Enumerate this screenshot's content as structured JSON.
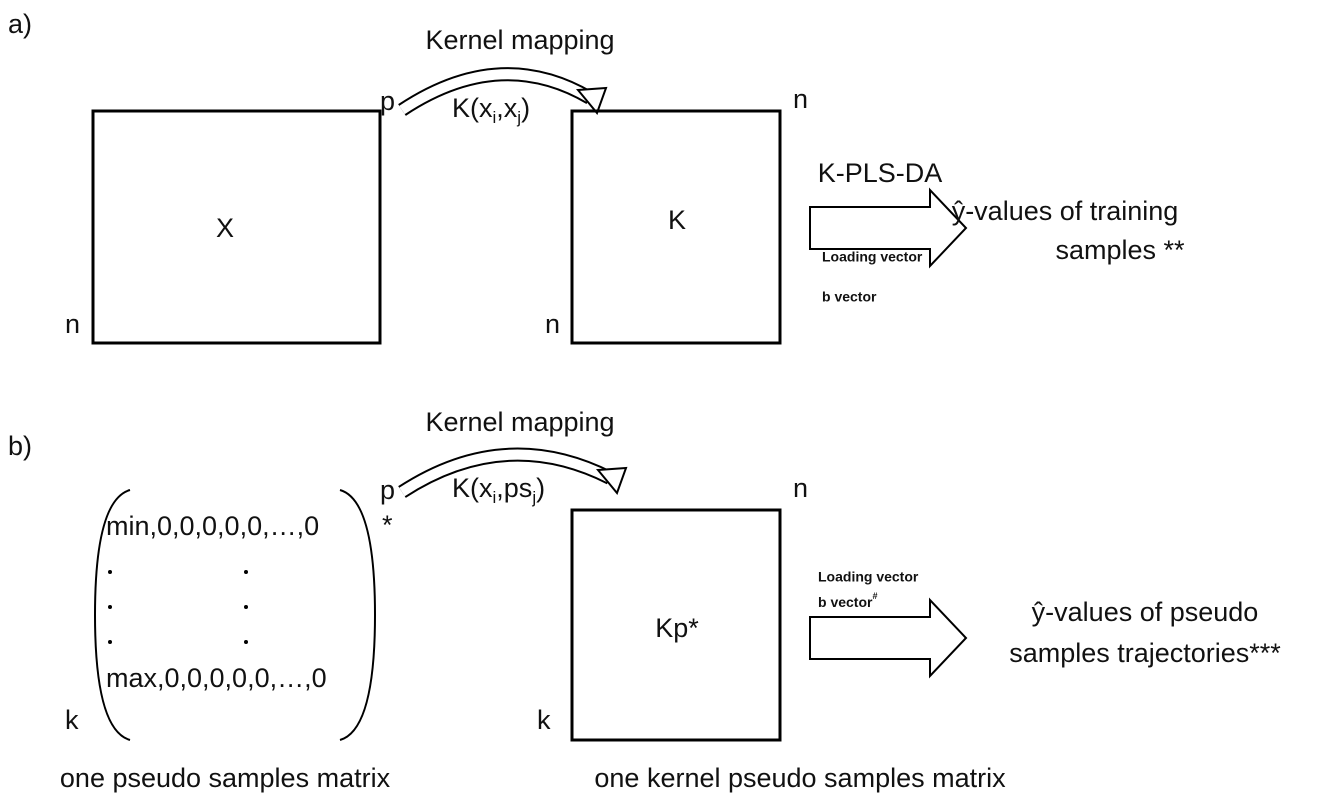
{
  "panel_a": {
    "label": "a)",
    "mapping_title": "Kernel mapping",
    "formula": [
      "K(x",
      "i",
      ",x",
      "j",
      ")"
    ],
    "input_matrix": {
      "name": "X",
      "cols": "p",
      "rows": "n"
    },
    "kernel_matrix": {
      "name": "K",
      "cols": "n",
      "rows": "n"
    },
    "method": "K-PLS-DA",
    "loading": "Loading vector",
    "b_vector": "b vector",
    "output": [
      "ŷ-values of training",
      "samples **"
    ]
  },
  "panel_b": {
    "label": "b)",
    "mapping_title": "Kernel mapping",
    "formula": [
      "K(x",
      "i",
      ",ps",
      "j",
      ")"
    ],
    "input_matrix": {
      "first_row": "min,0,0,0,0,0,…,0",
      "last_row": "max,0,0,0,0,0,…,0",
      "cols": "p",
      "star": "*",
      "rows": "k",
      "caption": "one pseudo samples matrix"
    },
    "kernel_matrix": {
      "name": "Kp*",
      "cols": "n",
      "rows": "k",
      "caption": "one kernel pseudo samples matrix"
    },
    "loading": "Loading vector",
    "b_vector": "b vector",
    "b_vector_mark": "#",
    "output": [
      "ŷ-values of pseudo",
      "samples trajectories***"
    ]
  }
}
